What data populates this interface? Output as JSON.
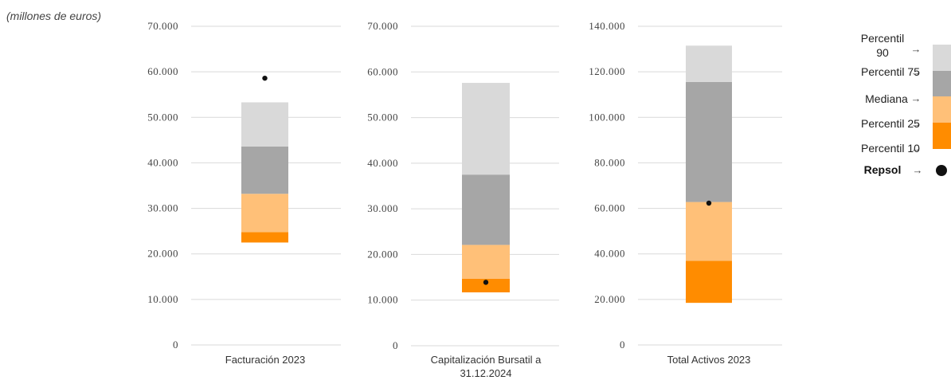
{
  "unit_note": "(millones de euros)",
  "colors": {
    "p10": "#ff8c00",
    "p25": "#ffc078",
    "median": "#a6a6a6",
    "p75": "#d9d9d9",
    "repsol": "#111111",
    "grid": "#d9d9d9"
  },
  "legend": [
    {
      "key": "p90",
      "label_lines": [
        "Percentil",
        "90"
      ],
      "arrow": "→"
    },
    {
      "key": "p75",
      "label_lines": [
        "Percentil 75"
      ],
      "arrow": "→"
    },
    {
      "key": "median",
      "label_lines": [
        "Mediana"
      ],
      "arrow": "→"
    },
    {
      "key": "p25",
      "label_lines": [
        "Percentil 25"
      ],
      "arrow": "→"
    },
    {
      "key": "p10",
      "label_lines": [
        "Percentil 10"
      ],
      "arrow": "→"
    },
    {
      "key": "repsol",
      "label_lines": [
        "Repsol"
      ],
      "arrow": "→"
    }
  ],
  "chart_data": [
    {
      "type": "bar",
      "category": "Facturación 2023",
      "category_lines": [
        "Facturación 2023"
      ],
      "ylim": [
        0,
        70000
      ],
      "yticks": [
        0,
        10000,
        20000,
        30000,
        40000,
        50000,
        60000,
        70000
      ],
      "ytick_labels": [
        "0",
        "10.000",
        "20.000",
        "30.000",
        "40.000",
        "50.000",
        "60.000",
        "70.000"
      ],
      "p10": 22500,
      "p25": 24800,
      "median": 33200,
      "p75": 43600,
      "p90": 53300,
      "repsol": 58600
    },
    {
      "type": "bar",
      "category": "Capitalización Bursatil a 31.12.2024",
      "category_lines": [
        "Capitalización Bursatil a",
        "31.12.2024"
      ],
      "ylim": [
        0,
        70000
      ],
      "yticks": [
        0,
        10000,
        20000,
        30000,
        40000,
        50000,
        60000,
        70000
      ],
      "ytick_labels": [
        "0",
        "10.000",
        "20.000",
        "30.000",
        "40.000",
        "50.000",
        "60.000",
        "70.000"
      ],
      "p10": 11700,
      "p25": 14700,
      "median": 22100,
      "p75": 37500,
      "p90": 57600,
      "repsol": 13900
    },
    {
      "type": "bar",
      "category": "Total Activos 2023",
      "category_lines": [
        "Total Activos 2023"
      ],
      "ylim": [
        0,
        140000
      ],
      "yticks": [
        0,
        20000,
        40000,
        60000,
        80000,
        100000,
        120000,
        140000
      ],
      "ytick_labels": [
        "0",
        "20.000",
        "40.000",
        "60.000",
        "80.000",
        "100.000",
        "120.000",
        "140.000"
      ],
      "p10": 18500,
      "p25": 37000,
      "median": 62800,
      "p75": 115500,
      "p90": 131500,
      "repsol": 62300
    }
  ]
}
